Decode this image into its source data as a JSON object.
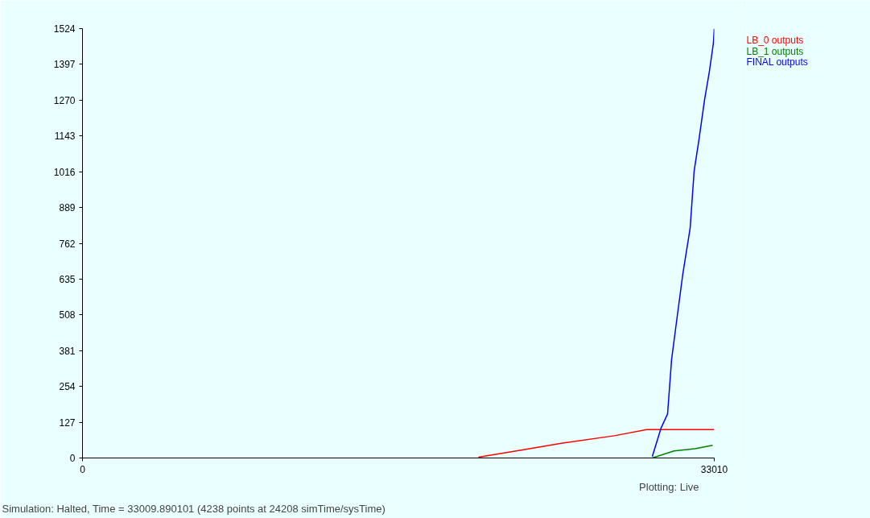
{
  "chart_data": {
    "type": "line",
    "xlim": [
      0,
      33010
    ],
    "ylim": [
      0,
      1524
    ],
    "xticks": [
      0,
      33010
    ],
    "yticks": [
      0,
      127,
      254,
      381,
      508,
      635,
      762,
      889,
      1016,
      1143,
      1270,
      1397,
      1524
    ],
    "grid": false,
    "line_style": "solid",
    "marker": "none",
    "series": [
      {
        "name": "LB_0 outputs",
        "color": "#ff0000",
        "x": [
          20689,
          22917,
          25020,
          27795,
          29477,
          33009
        ],
        "values": [
          3,
          28,
          52,
          79,
          101,
          101
        ]
      },
      {
        "name": "LB_1 outputs",
        "color": "#008000",
        "x": [
          29771,
          30907,
          32000,
          32925
        ],
        "values": [
          0,
          25,
          33,
          45
        ]
      },
      {
        "name": "FINAL outputs",
        "color": "#0000ff",
        "x": [
          29771,
          30234,
          30570,
          30781,
          31033,
          31369,
          31748,
          31958,
          32210,
          32505,
          32757,
          32967,
          33009
        ],
        "values": [
          5,
          107,
          156,
          350,
          481,
          654,
          815,
          1018,
          1130,
          1272,
          1373,
          1474,
          1524
        ]
      }
    ],
    "annotations": [
      "Plotting: Live",
      "Simulation: Halted, Time = 33009.890101 (4238 points at 24208 simTime/sysTime)"
    ]
  }
}
